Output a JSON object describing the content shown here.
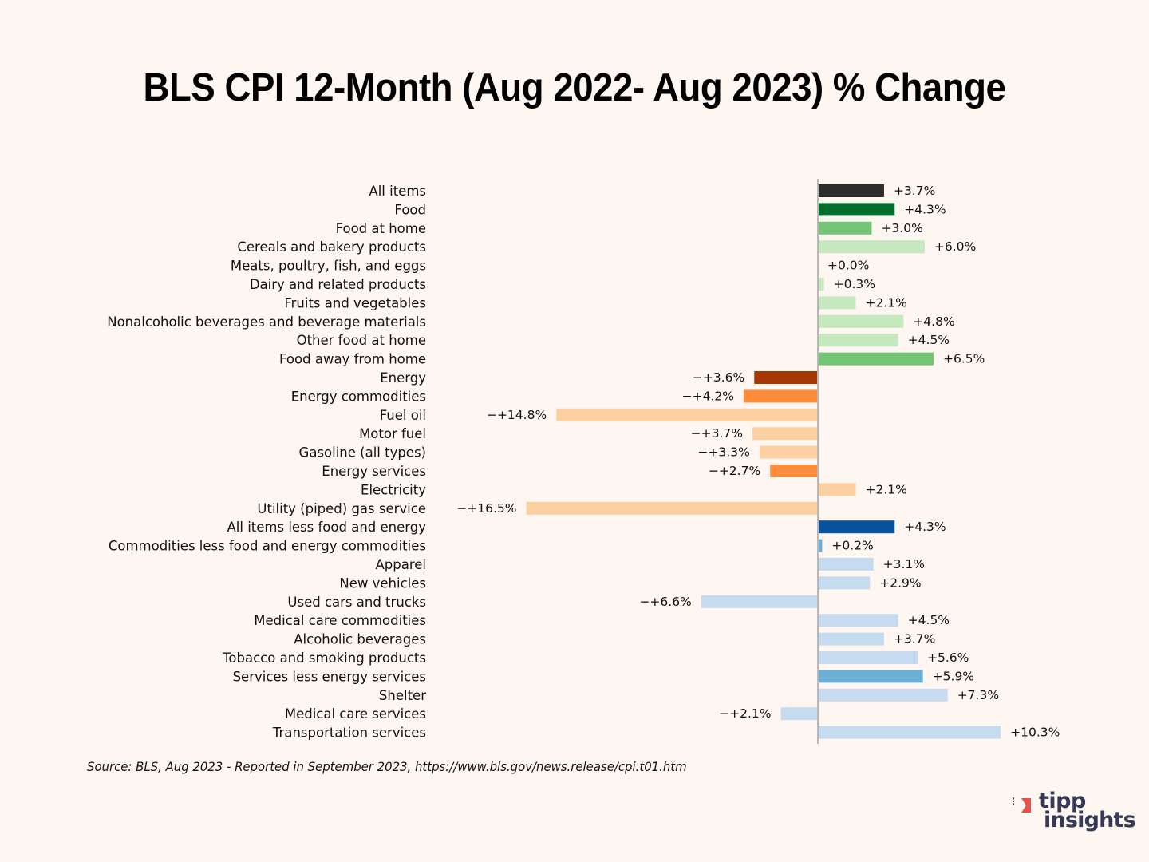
{
  "chart_data": {
    "type": "bar",
    "orientation": "horizontal",
    "title": "BLS CPI 12-Month (Aug 2022- Aug 2023) % Change",
    "xlabel": "",
    "ylabel": "",
    "grid": false,
    "legend": "none",
    "xlim": [
      -16.5,
      10.3
    ],
    "categories": [
      "All items",
      "Food",
      "Food at home",
      "Cereals and bakery products",
      "Meats, poultry, fish, and eggs",
      "Dairy and related products",
      "Fruits and vegetables",
      "Nonalcoholic beverages and beverage materials",
      "Other food at home",
      "Food away from home",
      "Energy",
      "Energy commodities",
      "Fuel oil",
      "Motor fuel",
      "Gasoline (all types)",
      "Energy services",
      "Electricity",
      "Utility (piped) gas service",
      "All items less food and energy",
      "Commodities less food and energy commodities",
      "Apparel",
      "New vehicles",
      "Used cars and trucks",
      "Medical care commodities",
      "Alcoholic beverages",
      "Tobacco and smoking products",
      "Services less energy services",
      "Shelter",
      "Medical care services",
      "Transportation services"
    ],
    "values": [
      3.7,
      4.3,
      3.0,
      6.0,
      0.0,
      0.3,
      2.1,
      4.8,
      4.5,
      6.5,
      -3.6,
      -4.2,
      -14.8,
      -3.7,
      -3.3,
      -2.7,
      2.1,
      -16.5,
      4.3,
      0.2,
      3.1,
      2.9,
      -6.6,
      4.5,
      3.7,
      5.6,
      5.9,
      7.3,
      -2.1,
      10.3
    ],
    "data_labels": [
      "+3.7%",
      "+4.3%",
      "+3.0%",
      "+6.0%",
      "+0.0%",
      "+0.3%",
      "+2.1%",
      "+4.8%",
      "+4.5%",
      "+6.5%",
      "-+3.6%",
      "-+4.2%",
      "-+14.8%",
      "-+3.7%",
      "-+3.3%",
      "-+2.7%",
      "+2.1%",
      "-+16.5%",
      "+4.3%",
      "+0.2%",
      "+3.1%",
      "+2.9%",
      "-+6.6%",
      "+4.5%",
      "+3.7%",
      "+5.6%",
      "+5.9%",
      "+7.3%",
      "-+2.1%",
      "+10.3%"
    ],
    "colors": [
      "#2d2d2d",
      "#006d2c",
      "#74c476",
      "#c7e9c0",
      "#c7e9c0",
      "#c7e9c0",
      "#c7e9c0",
      "#c7e9c0",
      "#c7e9c0",
      "#74c476",
      "#a63603",
      "#fd8d3c",
      "#fdd0a2",
      "#fdd0a2",
      "#fdd0a2",
      "#fd8d3c",
      "#fdd0a2",
      "#fdd0a2",
      "#08519c",
      "#6baed6",
      "#c6dbef",
      "#c6dbef",
      "#c6dbef",
      "#c6dbef",
      "#c6dbef",
      "#c6dbef",
      "#6baed6",
      "#c6dbef",
      "#c6dbef",
      "#c6dbef"
    ],
    "source": "Source:  BLS, Aug 2023 - Reported in September 2023, https://www.bls.gov/news.release/cpi.t01.htm"
  },
  "brand": {
    "line1": "tipp",
    "line2": "insights",
    "accent_color": "#e8524a",
    "text_color": "#363a57"
  }
}
